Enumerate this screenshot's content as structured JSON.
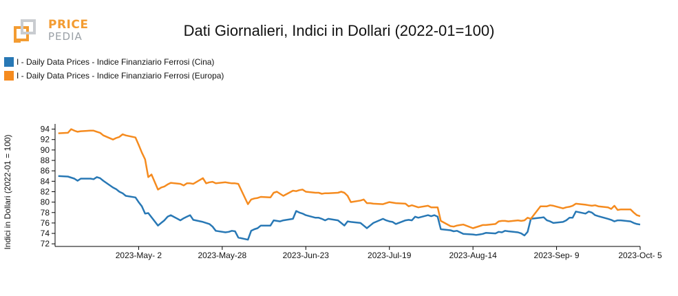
{
  "header": {
    "logo_line1": "PRICE",
    "logo_line2": "PEDIA",
    "title": "Dati Giornalieri, Indici in Dollari (2022-01=100)"
  },
  "colors": {
    "cina": "#2878b5",
    "europa": "#f58b1f",
    "axis": "#000000"
  },
  "chart_data": {
    "type": "line",
    "title": "Dati Giornalieri, Indici in Dollari (2022-01=100)",
    "xlabel": "",
    "ylabel": "Indici in Dollari (2022-01 = 100)",
    "ylim": [
      71.5,
      95
    ],
    "yticks": [
      72,
      74,
      76,
      78,
      80,
      82,
      84,
      86,
      88,
      90,
      92,
      94
    ],
    "xlim": [
      "2023-04-06",
      "2023-10-05"
    ],
    "xticks": [
      "2023-05-02",
      "2023-05-28",
      "2023-06-23",
      "2023-07-19",
      "2023-08-14",
      "2023-09-09",
      "2023-10-05"
    ],
    "xtick_labels": [
      "2023-May- 2",
      "2023-May-28",
      "2023-Jun-23",
      "2023-Jul-19",
      "2023-Aug-14",
      "2023-Sep- 9",
      "2023-Oct- 5"
    ],
    "legend_position": "top-left",
    "grid": false,
    "series": [
      {
        "name": "I - Daily Data Prices - Indice Finanziario Ferrosi (Cina)",
        "color": "#2878b5",
        "points": [
          [
            "2023-04-07",
            85.0
          ],
          [
            "2023-04-10",
            84.9
          ],
          [
            "2023-04-12",
            84.5
          ],
          [
            "2023-04-13",
            84.1
          ],
          [
            "2023-04-14",
            84.5
          ],
          [
            "2023-04-17",
            84.5
          ],
          [
            "2023-04-18",
            84.4
          ],
          [
            "2023-04-19",
            84.8
          ],
          [
            "2023-04-20",
            84.6
          ],
          [
            "2023-04-21",
            84.1
          ],
          [
            "2023-04-24",
            82.8
          ],
          [
            "2023-04-25",
            82.5
          ],
          [
            "2023-04-26",
            82.0
          ],
          [
            "2023-04-27",
            81.7
          ],
          [
            "2023-04-28",
            81.2
          ],
          [
            "2023-05-01",
            80.9
          ],
          [
            "2023-05-02",
            80.0
          ],
          [
            "2023-05-03",
            79.2
          ],
          [
            "2023-05-04",
            77.8
          ],
          [
            "2023-05-05",
            77.9
          ],
          [
            "2023-05-08",
            75.5
          ],
          [
            "2023-05-09",
            76.0
          ],
          [
            "2023-05-10",
            76.5
          ],
          [
            "2023-05-11",
            77.2
          ],
          [
            "2023-05-12",
            77.5
          ],
          [
            "2023-05-15",
            76.5
          ],
          [
            "2023-05-16",
            76.9
          ],
          [
            "2023-05-17",
            77.2
          ],
          [
            "2023-05-18",
            77.5
          ],
          [
            "2023-05-19",
            76.6
          ],
          [
            "2023-05-22",
            76.2
          ],
          [
            "2023-05-23",
            76.0
          ],
          [
            "2023-05-24",
            75.8
          ],
          [
            "2023-05-25",
            75.3
          ],
          [
            "2023-05-26",
            74.5
          ],
          [
            "2023-05-29",
            74.2
          ],
          [
            "2023-05-30",
            74.3
          ],
          [
            "2023-05-31",
            74.5
          ],
          [
            "2023-06-01",
            74.4
          ],
          [
            "2023-06-02",
            73.2
          ],
          [
            "2023-06-05",
            72.8
          ],
          [
            "2023-06-06",
            74.5
          ],
          [
            "2023-06-07",
            74.8
          ],
          [
            "2023-06-08",
            75.0
          ],
          [
            "2023-06-09",
            75.5
          ],
          [
            "2023-06-12",
            75.5
          ],
          [
            "2023-06-13",
            76.5
          ],
          [
            "2023-06-14",
            76.4
          ],
          [
            "2023-06-15",
            76.3
          ],
          [
            "2023-06-16",
            76.5
          ],
          [
            "2023-06-19",
            76.8
          ],
          [
            "2023-06-20",
            78.3
          ],
          [
            "2023-06-21",
            78.0
          ],
          [
            "2023-06-22",
            77.8
          ],
          [
            "2023-06-23",
            77.5
          ],
          [
            "2023-06-26",
            77.0
          ],
          [
            "2023-06-27",
            77.0
          ],
          [
            "2023-06-28",
            76.8
          ],
          [
            "2023-06-29",
            76.5
          ],
          [
            "2023-06-30",
            76.8
          ],
          [
            "2023-07-03",
            76.5
          ],
          [
            "2023-07-04",
            76.0
          ],
          [
            "2023-07-05",
            75.5
          ],
          [
            "2023-07-06",
            76.3
          ],
          [
            "2023-07-07",
            76.2
          ],
          [
            "2023-07-10",
            76.0
          ],
          [
            "2023-07-11",
            75.5
          ],
          [
            "2023-07-12",
            75.0
          ],
          [
            "2023-07-13",
            75.5
          ],
          [
            "2023-07-14",
            76.0
          ],
          [
            "2023-07-17",
            76.8
          ],
          [
            "2023-07-18",
            76.5
          ],
          [
            "2023-07-19",
            76.3
          ],
          [
            "2023-07-20",
            76.2
          ],
          [
            "2023-07-21",
            75.8
          ],
          [
            "2023-07-24",
            76.5
          ],
          [
            "2023-07-25",
            76.6
          ],
          [
            "2023-07-26",
            76.5
          ],
          [
            "2023-07-27",
            77.2
          ],
          [
            "2023-07-28",
            77.0
          ],
          [
            "2023-07-31",
            77.5
          ],
          [
            "2023-08-01",
            77.3
          ],
          [
            "2023-08-02",
            77.5
          ],
          [
            "2023-08-03",
            77.2
          ],
          [
            "2023-08-04",
            74.8
          ],
          [
            "2023-08-07",
            74.6
          ],
          [
            "2023-08-08",
            74.4
          ],
          [
            "2023-08-09",
            74.5
          ],
          [
            "2023-08-10",
            74.2
          ],
          [
            "2023-08-11",
            73.9
          ],
          [
            "2023-08-14",
            73.8
          ],
          [
            "2023-08-15",
            73.7
          ],
          [
            "2023-08-16",
            73.8
          ],
          [
            "2023-08-17",
            73.9
          ],
          [
            "2023-08-18",
            74.1
          ],
          [
            "2023-08-21",
            74.0
          ],
          [
            "2023-08-22",
            74.3
          ],
          [
            "2023-08-23",
            74.2
          ],
          [
            "2023-08-24",
            74.5
          ],
          [
            "2023-08-25",
            74.4
          ],
          [
            "2023-08-28",
            74.2
          ],
          [
            "2023-08-29",
            74.0
          ],
          [
            "2023-08-30",
            73.6
          ],
          [
            "2023-08-31",
            74.3
          ],
          [
            "2023-09-01",
            76.8
          ],
          [
            "2023-09-04",
            77.0
          ],
          [
            "2023-09-05",
            77.1
          ],
          [
            "2023-09-06",
            76.5
          ],
          [
            "2023-09-07",
            76.3
          ],
          [
            "2023-09-08",
            76.0
          ],
          [
            "2023-09-11",
            76.2
          ],
          [
            "2023-09-12",
            76.5
          ],
          [
            "2023-09-13",
            77.0
          ],
          [
            "2023-09-14",
            77.0
          ],
          [
            "2023-09-15",
            78.2
          ],
          [
            "2023-09-18",
            77.8
          ],
          [
            "2023-09-19",
            78.2
          ],
          [
            "2023-09-20",
            78.0
          ],
          [
            "2023-09-21",
            77.5
          ],
          [
            "2023-09-22",
            77.3
          ],
          [
            "2023-09-25",
            76.8
          ],
          [
            "2023-09-26",
            76.6
          ],
          [
            "2023-09-27",
            76.3
          ],
          [
            "2023-09-28",
            76.5
          ],
          [
            "2023-09-29",
            76.5
          ],
          [
            "2023-10-02",
            76.3
          ],
          [
            "2023-10-03",
            76.0
          ],
          [
            "2023-10-04",
            75.8
          ],
          [
            "2023-10-05",
            75.7
          ]
        ]
      },
      {
        "name": "I - Daily Data Prices - Indice Finanziario Ferrosi (Europa)",
        "color": "#f58b1f",
        "points": [
          [
            "2023-04-07",
            93.2
          ],
          [
            "2023-04-10",
            93.3
          ],
          [
            "2023-04-11",
            94.0
          ],
          [
            "2023-04-12",
            93.7
          ],
          [
            "2023-04-13",
            93.5
          ],
          [
            "2023-04-14",
            93.6
          ],
          [
            "2023-04-17",
            93.7
          ],
          [
            "2023-04-18",
            93.7
          ],
          [
            "2023-04-19",
            93.5
          ],
          [
            "2023-04-20",
            93.3
          ],
          [
            "2023-04-21",
            92.8
          ],
          [
            "2023-04-24",
            92.0
          ],
          [
            "2023-04-25",
            92.3
          ],
          [
            "2023-04-26",
            92.5
          ],
          [
            "2023-04-27",
            93.0
          ],
          [
            "2023-04-28",
            92.8
          ],
          [
            "2023-05-01",
            92.4
          ],
          [
            "2023-05-02",
            91.0
          ],
          [
            "2023-05-03",
            89.5
          ],
          [
            "2023-05-04",
            88.2
          ],
          [
            "2023-05-05",
            84.8
          ],
          [
            "2023-05-06",
            85.3
          ],
          [
            "2023-05-08",
            82.4
          ],
          [
            "2023-05-09",
            82.8
          ],
          [
            "2023-05-10",
            83.0
          ],
          [
            "2023-05-11",
            83.4
          ],
          [
            "2023-05-12",
            83.7
          ],
          [
            "2023-05-15",
            83.5
          ],
          [
            "2023-05-16",
            83.2
          ],
          [
            "2023-05-17",
            83.6
          ],
          [
            "2023-05-18",
            83.6
          ],
          [
            "2023-05-19",
            83.5
          ],
          [
            "2023-05-22",
            84.6
          ],
          [
            "2023-05-23",
            83.6
          ],
          [
            "2023-05-24",
            83.8
          ],
          [
            "2023-05-25",
            83.9
          ],
          [
            "2023-05-26",
            83.6
          ],
          [
            "2023-05-29",
            83.8
          ],
          [
            "2023-05-30",
            83.7
          ],
          [
            "2023-05-31",
            83.6
          ],
          [
            "2023-06-01",
            83.6
          ],
          [
            "2023-06-02",
            83.5
          ],
          [
            "2023-06-05",
            79.6
          ],
          [
            "2023-06-06",
            80.5
          ],
          [
            "2023-06-07",
            80.7
          ],
          [
            "2023-06-08",
            80.8
          ],
          [
            "2023-06-09",
            81.0
          ],
          [
            "2023-06-12",
            80.9
          ],
          [
            "2023-06-13",
            81.8
          ],
          [
            "2023-06-14",
            82.0
          ],
          [
            "2023-06-15",
            81.6
          ],
          [
            "2023-06-16",
            81.2
          ],
          [
            "2023-06-19",
            82.2
          ],
          [
            "2023-06-20",
            82.1
          ],
          [
            "2023-06-21",
            82.3
          ],
          [
            "2023-06-22",
            82.4
          ],
          [
            "2023-06-23",
            82.0
          ],
          [
            "2023-06-26",
            81.8
          ],
          [
            "2023-06-27",
            81.8
          ],
          [
            "2023-06-28",
            81.6
          ],
          [
            "2023-06-29",
            81.7
          ],
          [
            "2023-06-30",
            81.7
          ],
          [
            "2023-07-03",
            81.8
          ],
          [
            "2023-07-04",
            82.0
          ],
          [
            "2023-07-05",
            81.8
          ],
          [
            "2023-07-06",
            81.2
          ],
          [
            "2023-07-07",
            80.0
          ],
          [
            "2023-07-10",
            80.3
          ],
          [
            "2023-07-11",
            80.5
          ],
          [
            "2023-07-12",
            79.8
          ],
          [
            "2023-07-13",
            79.8
          ],
          [
            "2023-07-14",
            79.7
          ],
          [
            "2023-07-17",
            79.6
          ],
          [
            "2023-07-18",
            79.8
          ],
          [
            "2023-07-19",
            80.0
          ],
          [
            "2023-07-20",
            79.9
          ],
          [
            "2023-07-21",
            79.8
          ],
          [
            "2023-07-24",
            79.7
          ],
          [
            "2023-07-25",
            79.2
          ],
          [
            "2023-07-26",
            79.4
          ],
          [
            "2023-07-27",
            79.2
          ],
          [
            "2023-07-28",
            79.0
          ],
          [
            "2023-07-31",
            79.3
          ],
          [
            "2023-08-01",
            79.0
          ],
          [
            "2023-08-02",
            79.0
          ],
          [
            "2023-08-03",
            79.0
          ],
          [
            "2023-08-04",
            76.4
          ],
          [
            "2023-08-07",
            75.4
          ],
          [
            "2023-08-08",
            75.3
          ],
          [
            "2023-08-09",
            75.5
          ],
          [
            "2023-08-10",
            75.6
          ],
          [
            "2023-08-11",
            75.7
          ],
          [
            "2023-08-14",
            75.0
          ],
          [
            "2023-08-15",
            75.2
          ],
          [
            "2023-08-16",
            75.4
          ],
          [
            "2023-08-17",
            75.6
          ],
          [
            "2023-08-18",
            75.6
          ],
          [
            "2023-08-21",
            75.8
          ],
          [
            "2023-08-22",
            76.3
          ],
          [
            "2023-08-23",
            76.4
          ],
          [
            "2023-08-24",
            76.4
          ],
          [
            "2023-08-25",
            76.3
          ],
          [
            "2023-08-28",
            76.5
          ],
          [
            "2023-08-29",
            76.4
          ],
          [
            "2023-08-30",
            76.5
          ],
          [
            "2023-08-31",
            77.0
          ],
          [
            "2023-09-01",
            76.8
          ],
          [
            "2023-09-04",
            79.2
          ],
          [
            "2023-09-05",
            79.2
          ],
          [
            "2023-09-06",
            79.2
          ],
          [
            "2023-09-07",
            79.4
          ],
          [
            "2023-09-08",
            79.3
          ],
          [
            "2023-09-11",
            78.8
          ],
          [
            "2023-09-12",
            79.0
          ],
          [
            "2023-09-13",
            79.1
          ],
          [
            "2023-09-14",
            79.3
          ],
          [
            "2023-09-15",
            79.7
          ],
          [
            "2023-09-18",
            79.5
          ],
          [
            "2023-09-19",
            79.4
          ],
          [
            "2023-09-20",
            79.3
          ],
          [
            "2023-09-21",
            79.4
          ],
          [
            "2023-09-22",
            79.2
          ],
          [
            "2023-09-25",
            79.0
          ],
          [
            "2023-09-26",
            78.7
          ],
          [
            "2023-09-27",
            79.3
          ],
          [
            "2023-09-28",
            78.5
          ],
          [
            "2023-09-29",
            78.6
          ],
          [
            "2023-10-02",
            78.6
          ],
          [
            "2023-10-03",
            78.0
          ],
          [
            "2023-10-04",
            77.5
          ],
          [
            "2023-10-05",
            77.3
          ]
        ]
      }
    ]
  }
}
